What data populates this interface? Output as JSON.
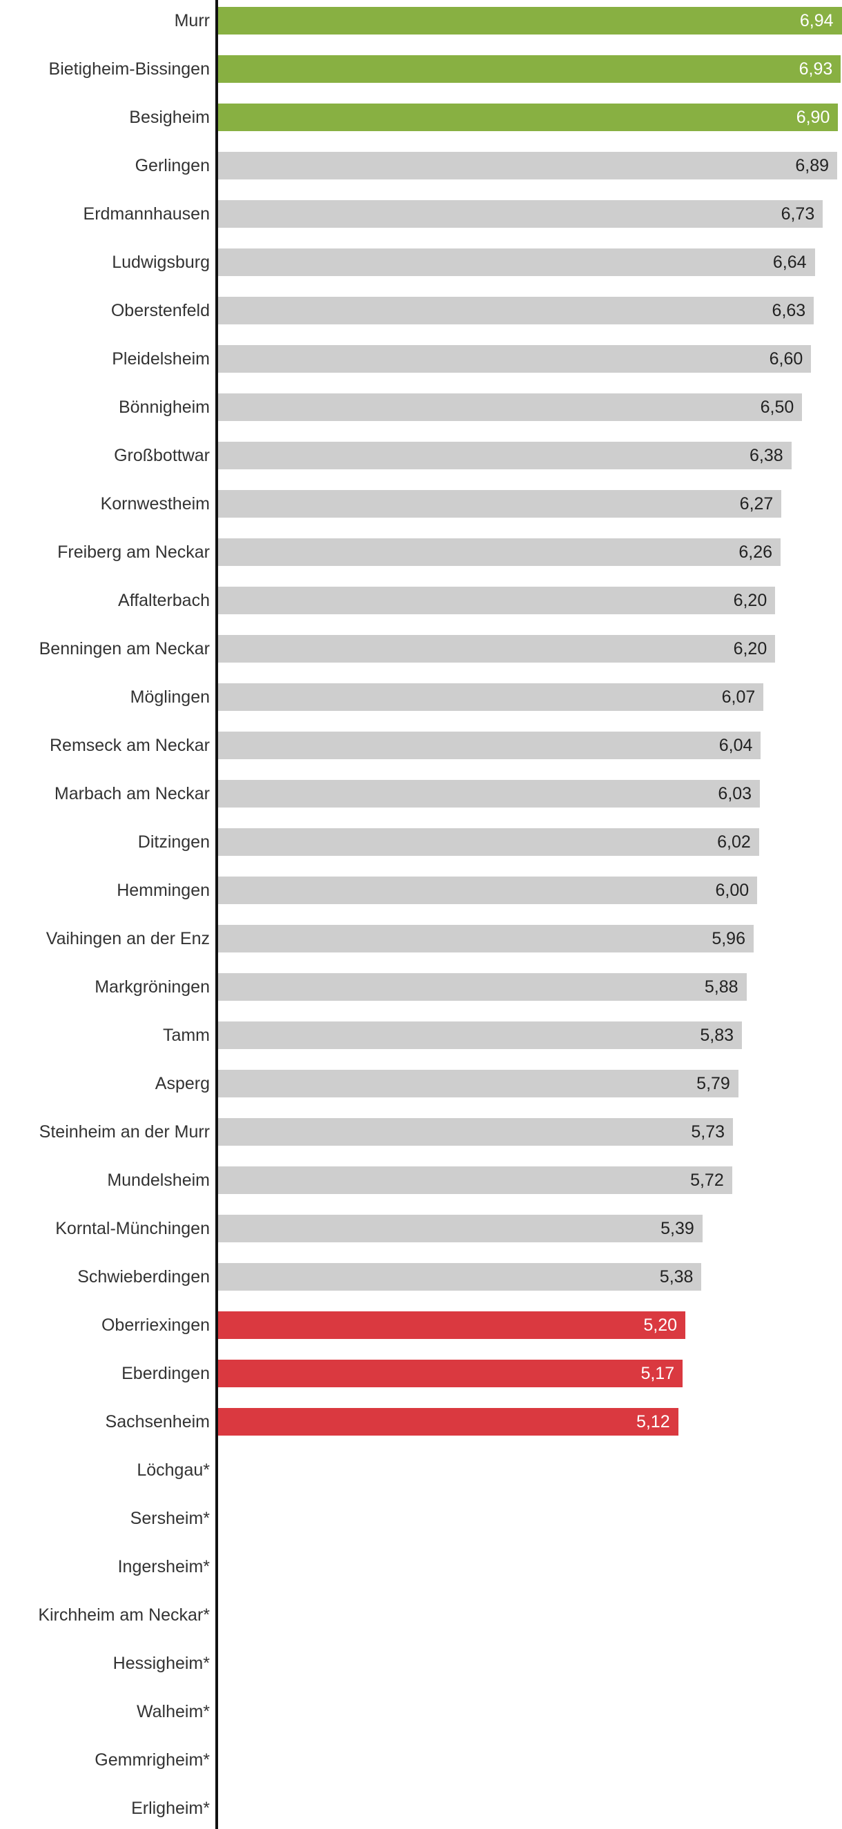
{
  "chart_data": {
    "type": "bar",
    "orientation": "horizontal",
    "xlim": [
      0,
      6.94
    ],
    "grid": false,
    "colors": {
      "top": "#88b042",
      "middle": "#cecece",
      "bottom": "#da3940"
    },
    "categories": [
      "Murr",
      "Bietigheim-Bissingen",
      "Besigheim",
      "Gerlingen",
      "Erdmannhausen",
      "Ludwigsburg",
      "Oberstenfeld",
      "Pleidelsheim",
      "Bönnigheim",
      "Großbottwar",
      "Kornwestheim",
      "Freiberg am Neckar",
      "Affalterbach",
      "Benningen am Neckar",
      "Möglingen",
      "Remseck am Neckar",
      "Marbach am Neckar",
      "Ditzingen",
      "Hemmingen",
      "Vaihingen an der Enz",
      "Markgröningen",
      "Tamm",
      "Asperg",
      "Steinheim an der Murr",
      "Mundelsheim",
      "Korntal-Münchingen",
      "Schwieberdingen",
      "Oberriexingen",
      "Eberdingen",
      "Sachsenheim",
      "Löchgau*",
      "Sersheim*",
      "Ingersheim*",
      "Kirchheim am Neckar*",
      "Hessigheim*",
      "Walheim*",
      "Gemmrigheim*",
      "Erligheim*"
    ],
    "values": [
      6.94,
      6.93,
      6.9,
      6.89,
      6.73,
      6.64,
      6.63,
      6.6,
      6.5,
      6.38,
      6.27,
      6.26,
      6.2,
      6.2,
      6.07,
      6.04,
      6.03,
      6.02,
      6.0,
      5.96,
      5.88,
      5.83,
      5.79,
      5.73,
      5.72,
      5.39,
      5.38,
      5.2,
      5.17,
      5.12,
      null,
      null,
      null,
      null,
      null,
      null,
      null,
      null
    ],
    "value_labels": [
      "6,94",
      "6,93",
      "6,90",
      "6,89",
      "6,73",
      "6,64",
      "6,63",
      "6,60",
      "6,50",
      "6,38",
      "6,27",
      "6,26",
      "6,20",
      "6,20",
      "6,07",
      "6,04",
      "6,03",
      "6,02",
      "6,00",
      "5,96",
      "5,88",
      "5,83",
      "5,79",
      "5,73",
      "5,72",
      "5,39",
      "5,38",
      "5,20",
      "5,17",
      "5,12",
      "",
      "",
      "",
      "",
      "",
      "",
      "",
      ""
    ],
    "groups": [
      "top",
      "top",
      "top",
      "middle",
      "middle",
      "middle",
      "middle",
      "middle",
      "middle",
      "middle",
      "middle",
      "middle",
      "middle",
      "middle",
      "middle",
      "middle",
      "middle",
      "middle",
      "middle",
      "middle",
      "middle",
      "middle",
      "middle",
      "middle",
      "middle",
      "middle",
      "middle",
      "bottom",
      "bottom",
      "bottom",
      "",
      "",
      "",
      "",
      "",
      "",
      "",
      ""
    ]
  }
}
